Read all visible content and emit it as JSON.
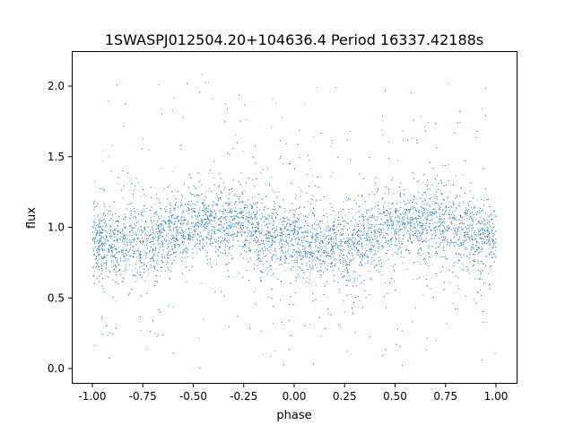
{
  "chart_data": {
    "type": "scatter",
    "title": "1SWASPJ012504.20+104636.4 Period 16337.42188s",
    "xlabel": "phase",
    "ylabel": "flux",
    "xlim": [
      -1.1,
      1.1
    ],
    "ylim": [
      -0.1,
      2.25
    ],
    "xticks": [
      "-1.00",
      "-0.75",
      "-0.50",
      "-0.25",
      "0.00",
      "0.25",
      "0.50",
      "0.75",
      "1.00"
    ],
    "yticks": [
      "0.0",
      "0.5",
      "1.0",
      "1.5",
      "2.0"
    ],
    "grid": false,
    "legend": "none",
    "marker_color": "#1f77b4",
    "binned_mean_flux": {
      "phase": [
        -1.0,
        -0.85,
        -0.7,
        -0.55,
        -0.4,
        -0.3,
        -0.2,
        -0.1,
        0.0,
        0.15,
        0.3,
        0.45,
        0.6,
        0.7,
        0.8,
        0.9,
        1.0
      ],
      "flux": [
        0.9,
        0.88,
        0.92,
        0.98,
        1.03,
        1.05,
        1.0,
        0.93,
        0.9,
        0.86,
        0.9,
        0.98,
        1.03,
        1.05,
        1.0,
        0.93,
        0.9
      ]
    },
    "flux_scatter_sd": 0.13,
    "flux_range": [
      0.0,
      2.15
    ]
  }
}
